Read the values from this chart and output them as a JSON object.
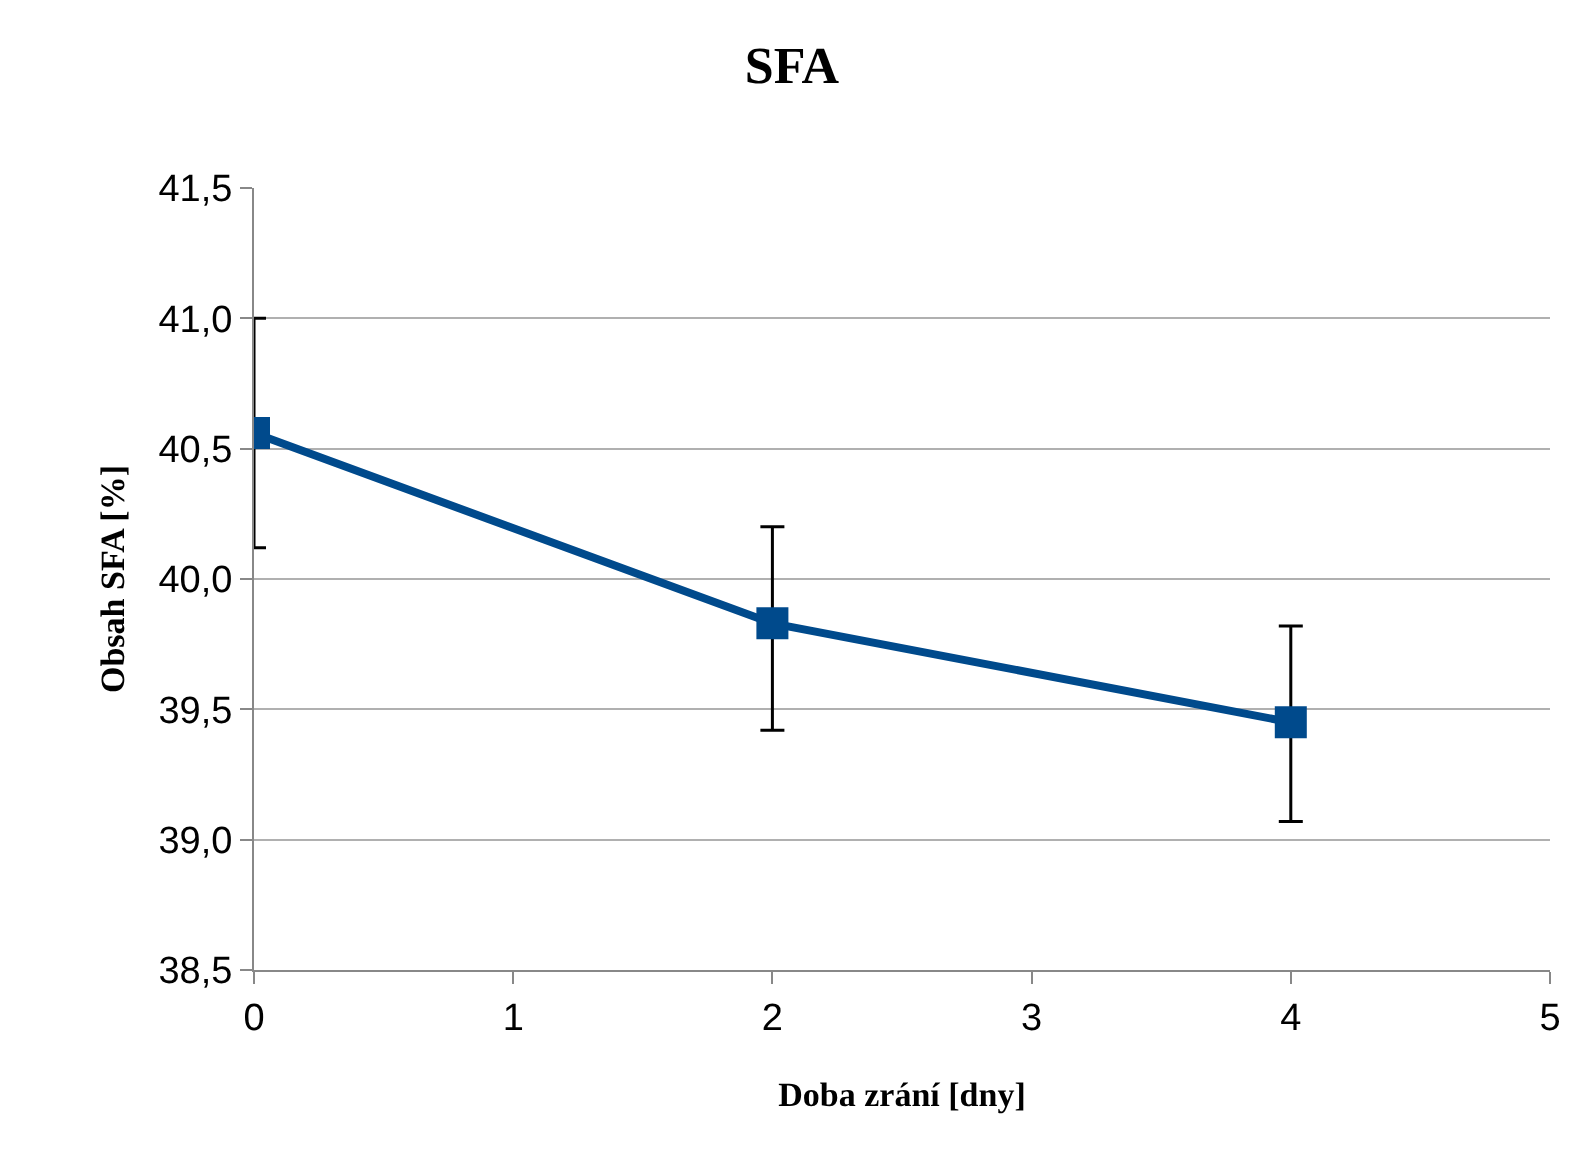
{
  "chart_data": {
    "type": "line",
    "title": "SFA",
    "xlabel": "Doba zrání [dny]",
    "ylabel": "Obsah SFA [%]",
    "x": [
      0,
      2,
      4
    ],
    "series": [
      {
        "color": "#004a8c",
        "values": [
          40.56,
          39.83,
          39.45
        ],
        "errors": [
          [
            40.12,
            41.0
          ],
          [
            39.42,
            40.2
          ],
          [
            39.07,
            39.82
          ]
        ]
      }
    ],
    "xlim": [
      0,
      5
    ],
    "xticks": [
      0,
      1,
      2,
      3,
      4,
      5
    ],
    "ylim": [
      38.5,
      41.5
    ],
    "yticks": [
      {
        "value": 38.5,
        "label": "38,5"
      },
      {
        "value": 39.0,
        "label": "39,0"
      },
      {
        "value": 39.5,
        "label": "39,5"
      },
      {
        "value": 40.0,
        "label": "40,0"
      },
      {
        "value": 40.5,
        "label": "40,5"
      },
      {
        "value": 41.0,
        "label": "41,0"
      },
      {
        "value": 41.5,
        "label": "41,5"
      }
    ],
    "grid": "y",
    "legend": false,
    "marker": "square",
    "line_style": "solid"
  }
}
